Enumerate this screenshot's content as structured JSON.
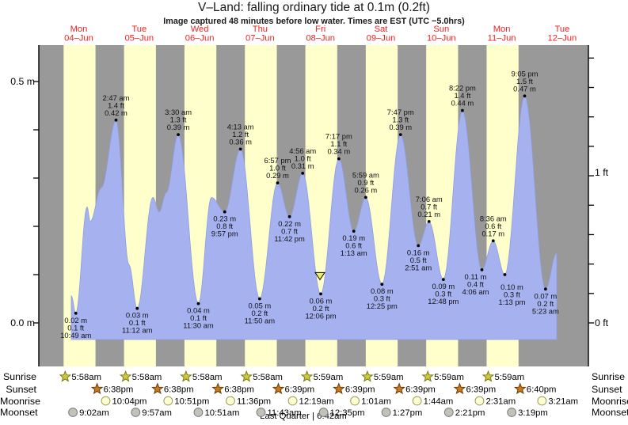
{
  "title": "V–Land: falling  ordinary tide at 0.1m (0.2ft)",
  "subtitle": "Image captured 48 minutes before low water. Times are EST (UTC −5.0hrs)",
  "days": [
    {
      "name": "Mon",
      "date": "04–Jun"
    },
    {
      "name": "Tue",
      "date": "05–Jun"
    },
    {
      "name": "Wed",
      "date": "06–Jun"
    },
    {
      "name": "Thu",
      "date": "07–Jun"
    },
    {
      "name": "Fri",
      "date": "08–Jun"
    },
    {
      "name": "Sat",
      "date": "09–Jun"
    },
    {
      "name": "Sun",
      "date": "10–Jun"
    },
    {
      "name": "Mon",
      "date": "11–Jun"
    },
    {
      "name": "Tue",
      "date": "12–Jun"
    }
  ],
  "y_axis": {
    "left_top": "0.5 m",
    "left_bottom": "0.0 m",
    "right_top": "1 ft",
    "right_bottom": "0 ft"
  },
  "chart_data": {
    "type": "area",
    "title": "V–Land: falling ordinary tide at 0.1m (0.2ft)",
    "ylabel_left": "metres",
    "ylabel_right": "feet",
    "ylim_m": [
      -0.09,
      0.575
    ],
    "current_level": {
      "m": 0.1,
      "ft": 0.2
    },
    "extremes": [
      {
        "day": 0,
        "kind": "low",
        "time": "10:49 am",
        "m": 0.02,
        "ft": 0.1
      },
      {
        "day": 1,
        "kind": "high",
        "time": "2:47 am",
        "m": 0.42,
        "ft": 1.4
      },
      {
        "day": 1,
        "kind": "low",
        "time": "11:12 am",
        "m": 0.03,
        "ft": 0.1
      },
      {
        "day": 2,
        "kind": "high",
        "time": "3:30 am",
        "m": 0.39,
        "ft": 1.3
      },
      {
        "day": 2,
        "kind": "low",
        "time": "11:30 am",
        "m": 0.04,
        "ft": 0.1
      },
      {
        "day": 2,
        "kind": "low",
        "time": "9:57 pm",
        "m": 0.23,
        "ft": 0.8
      },
      {
        "day": 3,
        "kind": "high",
        "time": "4:13 am",
        "m": 0.36,
        "ft": 1.2
      },
      {
        "day": 3,
        "kind": "low",
        "time": "11:50 am",
        "m": 0.05,
        "ft": 0.2
      },
      {
        "day": 3,
        "kind": "high",
        "time": "6:57 pm",
        "m": 0.29,
        "ft": 1.0
      },
      {
        "day": 3,
        "kind": "low",
        "time": "11:42 pm",
        "m": 0.22,
        "ft": 0.7
      },
      {
        "day": 4,
        "kind": "high",
        "time": "4:56 am",
        "m": 0.31,
        "ft": 1.0
      },
      {
        "day": 4,
        "kind": "low",
        "time": "12:06 pm",
        "m": 0.06,
        "ft": 0.2,
        "marker": true
      },
      {
        "day": 4,
        "kind": "high",
        "time": "7:17 pm",
        "m": 0.34,
        "ft": 1.1
      },
      {
        "day": 5,
        "kind": "low",
        "time": "1:13 am",
        "m": 0.19,
        "ft": 0.6
      },
      {
        "day": 5,
        "kind": "high",
        "time": "5:59 am",
        "m": 0.26,
        "ft": 0.9
      },
      {
        "day": 5,
        "kind": "low",
        "time": "12:25 pm",
        "m": 0.08,
        "ft": 0.3
      },
      {
        "day": 5,
        "kind": "high",
        "time": "7:47 pm",
        "m": 0.39,
        "ft": 1.3
      },
      {
        "day": 6,
        "kind": "low",
        "time": "2:51 am",
        "m": 0.16,
        "ft": 0.5
      },
      {
        "day": 6,
        "kind": "high",
        "time": "7:06 am",
        "m": 0.21,
        "ft": 0.7
      },
      {
        "day": 6,
        "kind": "low",
        "time": "12:48 pm",
        "m": 0.09,
        "ft": 0.3
      },
      {
        "day": 6,
        "kind": "high",
        "time": "8:22 pm",
        "m": 0.44,
        "ft": 1.4
      },
      {
        "day": 7,
        "kind": "low",
        "time": "4:06 am",
        "m": 0.11,
        "ft": 0.4
      },
      {
        "day": 7,
        "kind": "high",
        "time": "8:36 am",
        "m": 0.17,
        "ft": 0.6
      },
      {
        "day": 7,
        "kind": "low",
        "time": "1:13 pm",
        "m": 0.1,
        "ft": 0.3
      },
      {
        "day": 7,
        "kind": "high",
        "time": "9:05 pm",
        "m": 0.47,
        "ft": 1.5
      },
      {
        "day": 8,
        "kind": "low",
        "time": "5:23 am",
        "m": 0.07,
        "ft": 0.2
      }
    ],
    "shape_points": [
      {
        "day": 0,
        "time": "3:18 pm",
        "m": 0.24
      },
      {
        "day": 0,
        "time": "4:33 pm",
        "m": 0.21
      },
      {
        "day": 0,
        "time": "8:58 pm",
        "m": 0.28
      },
      {
        "day": 1,
        "time": "7:58 am",
        "m": 0.12
      },
      {
        "day": 1,
        "time": "5:25 pm",
        "m": 0.26
      },
      {
        "day": 1,
        "time": "7:56 pm",
        "m": 0.23
      },
      {
        "day": 1,
        "time": "10:46 pm",
        "m": 0.27
      },
      {
        "day": 2,
        "time": "4:41 pm",
        "m": 0.26
      }
    ],
    "start": {
      "day": 0,
      "time": "9:00 am",
      "m": 0.056
    },
    "end": {
      "day": 8,
      "time": "9:50 am",
      "m": 0.145
    }
  },
  "astro": {
    "rows": [
      {
        "label": "Sunrise",
        "icon": "sunrise-star",
        "entries": [
          {
            "day": 0,
            "time": "5:58am"
          },
          {
            "day": 1,
            "time": "5:58am"
          },
          {
            "day": 2,
            "time": "5:58am"
          },
          {
            "day": 3,
            "time": "5:58am"
          },
          {
            "day": 4,
            "time": "5:59am"
          },
          {
            "day": 5,
            "time": "5:59am"
          },
          {
            "day": 6,
            "time": "5:59am"
          },
          {
            "day": 7,
            "time": "5:59am"
          }
        ]
      },
      {
        "label": "Sunset",
        "icon": "sunset-star",
        "entries": [
          {
            "day": 0,
            "time": "6:38pm"
          },
          {
            "day": 1,
            "time": "6:38pm"
          },
          {
            "day": 2,
            "time": "6:38pm"
          },
          {
            "day": 3,
            "time": "6:39pm"
          },
          {
            "day": 4,
            "time": "6:39pm"
          },
          {
            "day": 5,
            "time": "6:39pm"
          },
          {
            "day": 6,
            "time": "6:39pm"
          },
          {
            "day": 7,
            "time": "6:40pm"
          }
        ]
      },
      {
        "label": "Moonrise",
        "icon": "moonrise-circle",
        "entries": [
          {
            "day": 0,
            "time": "10:04pm"
          },
          {
            "day": 1,
            "time": "10:51pm"
          },
          {
            "day": 2,
            "time": "11:36pm"
          },
          {
            "day": 4,
            "time": "12:19am"
          },
          {
            "day": 5,
            "time": "1:01am"
          },
          {
            "day": 6,
            "time": "1:44am"
          },
          {
            "day": 7,
            "time": "2:31am"
          },
          {
            "day": 8,
            "time": "3:21am"
          }
        ]
      },
      {
        "label": "Moonset",
        "icon": "moonset-circle",
        "entries": [
          {
            "day": 0,
            "time": "9:02am"
          },
          {
            "day": 1,
            "time": "9:57am"
          },
          {
            "day": 2,
            "time": "10:51am"
          },
          {
            "day": 3,
            "time": "11:43am"
          },
          {
            "day": 4,
            "time": "12:35pm"
          },
          {
            "day": 5,
            "time": "1:27pm"
          },
          {
            "day": 6,
            "time": "2:21pm"
          },
          {
            "day": 7,
            "time": "3:19pm"
          }
        ]
      }
    ],
    "moon_phase": "Last Quarter | 6:42am"
  },
  "colors": {
    "night_band": "#999999",
    "day_band": "#ffffcc",
    "tide_fill": "#a6b2f0",
    "tide_edge": "#8f9de0",
    "day_label_red": "#ee2222",
    "marker_fill": "#f0f060",
    "sunrise_star": "#cfc93e",
    "sunrise_star_edge": "#7a7a10",
    "sunset_star": "#c87a1e",
    "sunset_star_edge": "#6b3a00",
    "moonrise_fill": "#ffffd8",
    "moonrise_edge": "#99994d",
    "moonset_fill": "#c2c2ba",
    "moonset_edge": "#7a7a7a"
  }
}
